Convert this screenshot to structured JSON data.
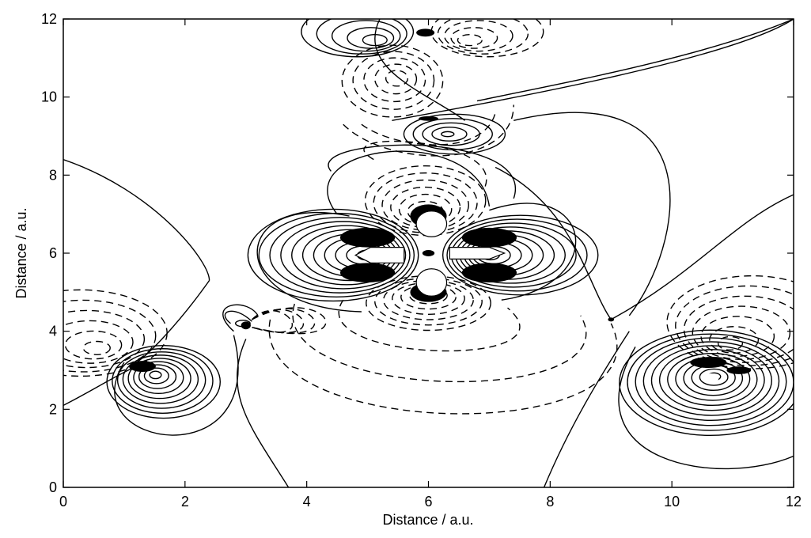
{
  "chart_data": {
    "type": "contour",
    "xlabel": "Distance / a.u.",
    "ylabel": "Distance / a.u.",
    "xlim": [
      0,
      12
    ],
    "ylim": [
      0,
      12
    ],
    "x_ticks": [
      0,
      2,
      4,
      6,
      8,
      10,
      12
    ],
    "y_ticks": [
      0,
      2,
      4,
      6,
      8,
      10,
      12
    ],
    "x_tick_labels": [
      "0",
      "2",
      "4",
      "6",
      "8",
      10,
      12
    ],
    "y_tick_labels": [
      "0",
      "2",
      "4",
      "6",
      "8",
      "10",
      "12"
    ],
    "grid": false,
    "line_styles": {
      "positive": "solid",
      "negative": "dashed"
    },
    "centers": [
      {
        "x": 6.0,
        "y": 6.0
      },
      {
        "x": 1.3,
        "y": 3.1
      },
      {
        "x": 10.6,
        "y": 3.2
      },
      {
        "x": 3.0,
        "y": 4.2
      },
      {
        "x": 6.0,
        "y": 9.5
      },
      {
        "x": 5.9,
        "y": 11.7
      },
      {
        "x": 9.0,
        "y": 4.3
      }
    ]
  }
}
